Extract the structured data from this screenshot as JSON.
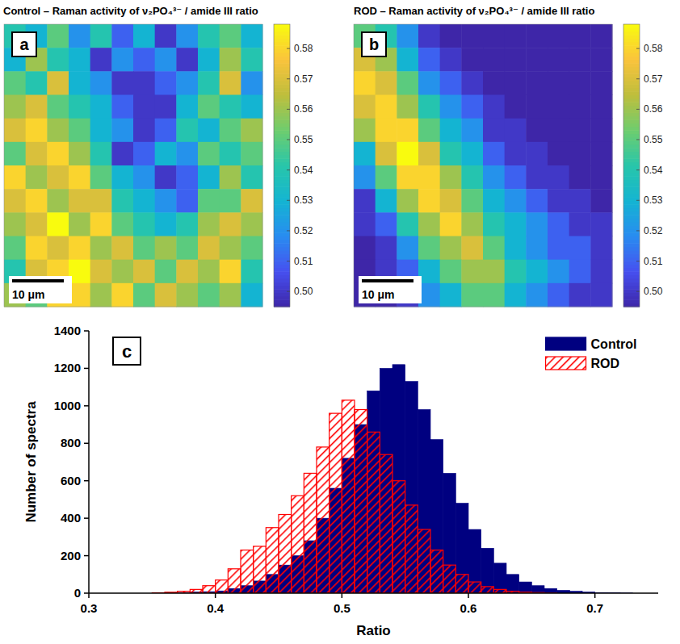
{
  "chart_data": [
    {
      "type": "heatmap",
      "panel_label": "a",
      "title": "Control – Raman activity of ν₂PO₄³⁻ / amide III ratio",
      "xlim": [
        0,
        50
      ],
      "ylim": [
        0,
        50
      ],
      "tick_labels": false,
      "scale_bar": {
        "label": "10 μm",
        "length": 10
      },
      "colorbar": {
        "range": [
          0.495,
          0.588
        ],
        "ticks": [
          {
            "value": 0.5,
            "label": "0.50"
          },
          0.51,
          0.52,
          0.53,
          0.54,
          0.55,
          0.56,
          0.57,
          0.58
        ]
      },
      "cells": [
        [
          0.54,
          0.53,
          0.55,
          0.52,
          0.54,
          0.51,
          0.53,
          0.5,
          0.52,
          0.54,
          0.55,
          0.53
        ],
        [
          0.53,
          0.56,
          0.54,
          0.53,
          0.5,
          0.52,
          0.51,
          0.52,
          0.5,
          0.53,
          0.56,
          0.54
        ],
        [
          0.55,
          0.54,
          0.57,
          0.53,
          0.52,
          0.5,
          0.5,
          0.51,
          0.52,
          0.54,
          0.57,
          0.52
        ],
        [
          0.56,
          0.57,
          0.55,
          0.54,
          0.53,
          0.51,
          0.5,
          0.5,
          0.53,
          0.55,
          0.54,
          0.53
        ],
        [
          0.57,
          0.58,
          0.56,
          0.55,
          0.53,
          0.52,
          0.5,
          0.51,
          0.54,
          0.53,
          0.55,
          0.56
        ],
        [
          0.55,
          0.57,
          0.58,
          0.56,
          0.54,
          0.5,
          0.51,
          0.53,
          0.52,
          0.55,
          0.54,
          0.55
        ],
        [
          0.58,
          0.56,
          0.57,
          0.58,
          0.55,
          0.53,
          0.52,
          0.5,
          0.51,
          0.53,
          0.56,
          0.54
        ],
        [
          0.57,
          0.58,
          0.56,
          0.57,
          0.57,
          0.54,
          0.53,
          0.52,
          0.51,
          0.55,
          0.55,
          0.57
        ],
        [
          0.56,
          0.57,
          0.59,
          0.56,
          0.58,
          0.55,
          0.54,
          0.53,
          0.54,
          0.56,
          0.57,
          0.56
        ],
        [
          0.55,
          0.58,
          0.57,
          0.58,
          0.56,
          0.57,
          0.55,
          0.56,
          0.55,
          0.57,
          0.56,
          0.55
        ],
        [
          0.54,
          0.57,
          0.58,
          0.59,
          0.57,
          0.56,
          0.57,
          0.55,
          0.57,
          0.56,
          0.58,
          0.54
        ],
        [
          0.56,
          0.55,
          0.58,
          0.58,
          0.56,
          0.58,
          0.55,
          0.57,
          0.56,
          0.55,
          0.56,
          0.53
        ]
      ]
    },
    {
      "type": "heatmap",
      "panel_label": "b",
      "title": "ROD – Raman activity of ν₂PO₄³⁻ / amide III ratio",
      "xlim": [
        0,
        50
      ],
      "ylim": [
        0,
        50
      ],
      "tick_labels": false,
      "scale_bar": {
        "label": "10 μm",
        "length": 10
      },
      "colorbar": {
        "range": [
          0.495,
          0.588
        ],
        "ticks": [
          {
            "value": 0.5,
            "label": "0.50"
          },
          0.51,
          0.52,
          0.53,
          0.54,
          0.55,
          0.56,
          0.57,
          0.58
        ]
      },
      "cells": [
        [
          0.55,
          0.54,
          0.52,
          0.5,
          0.495,
          0.495,
          0.495,
          0.495,
          0.495,
          0.495,
          0.495,
          0.495
        ],
        [
          0.57,
          0.56,
          0.53,
          0.51,
          0.5,
          0.495,
          0.495,
          0.495,
          0.495,
          0.495,
          0.495,
          0.495
        ],
        [
          0.58,
          0.57,
          0.55,
          0.52,
          0.51,
          0.5,
          0.495,
          0.495,
          0.495,
          0.495,
          0.495,
          0.495
        ],
        [
          0.57,
          0.58,
          0.56,
          0.54,
          0.52,
          0.51,
          0.5,
          0.495,
          0.495,
          0.495,
          0.495,
          0.495
        ],
        [
          0.56,
          0.58,
          0.58,
          0.55,
          0.53,
          0.52,
          0.5,
          0.5,
          0.495,
          0.495,
          0.495,
          0.495
        ],
        [
          0.53,
          0.57,
          0.59,
          0.57,
          0.54,
          0.53,
          0.51,
          0.5,
          0.5,
          0.495,
          0.495,
          0.495
        ],
        [
          0.52,
          0.55,
          0.58,
          0.58,
          0.56,
          0.54,
          0.52,
          0.51,
          0.5,
          0.5,
          0.495,
          0.495
        ],
        [
          0.5,
          0.53,
          0.56,
          0.58,
          0.57,
          0.55,
          0.53,
          0.52,
          0.51,
          0.5,
          0.5,
          0.495
        ],
        [
          0.5,
          0.51,
          0.54,
          0.56,
          0.58,
          0.56,
          0.54,
          0.53,
          0.52,
          0.51,
          0.5,
          0.5
        ],
        [
          0.495,
          0.5,
          0.52,
          0.55,
          0.56,
          0.57,
          0.55,
          0.53,
          0.52,
          0.51,
          0.51,
          0.5
        ],
        [
          0.495,
          0.5,
          0.51,
          0.53,
          0.55,
          0.56,
          0.56,
          0.54,
          0.53,
          0.52,
          0.51,
          0.5
        ],
        [
          0.495,
          0.495,
          0.5,
          0.52,
          0.53,
          0.55,
          0.55,
          0.53,
          0.52,
          0.51,
          0.5,
          0.5
        ]
      ]
    },
    {
      "type": "histogram",
      "panel_label": "c",
      "x_label": "Ratio",
      "y_label": "Number of spectra",
      "xlim": [
        0.3,
        0.75
      ],
      "ylim": [
        0,
        1400
      ],
      "xticks": [
        0.3,
        0.4,
        0.5,
        0.6,
        0.7
      ],
      "yticks": [
        0,
        200,
        400,
        600,
        800,
        1000,
        1200,
        1400
      ],
      "legend": "upper right",
      "bins": [
        0.35,
        0.36,
        0.37,
        0.38,
        0.39,
        0.4,
        0.41,
        0.42,
        0.43,
        0.44,
        0.45,
        0.46,
        0.47,
        0.48,
        0.49,
        0.5,
        0.51,
        0.52,
        0.53,
        0.54,
        0.55,
        0.56,
        0.57,
        0.58,
        0.59,
        0.6,
        0.61,
        0.62,
        0.63,
        0.64,
        0.65,
        0.66,
        0.67,
        0.68,
        0.69,
        0.7,
        0.71,
        0.72,
        0.73,
        0.74,
        0.75
      ],
      "series": [
        {
          "name": "Control",
          "color": "#000080",
          "values": [
            0,
            2,
            4,
            6,
            8,
            12,
            25,
            40,
            65,
            100,
            150,
            200,
            280,
            400,
            560,
            720,
            900,
            1080,
            1200,
            1220,
            1130,
            980,
            820,
            640,
            480,
            340,
            240,
            160,
            100,
            60,
            40,
            25,
            15,
            10,
            6,
            3,
            2,
            1,
            0,
            0
          ]
        },
        {
          "name": "ROD",
          "color": "#ff0000",
          "values": [
            2,
            5,
            10,
            20,
            40,
            70,
            130,
            230,
            250,
            350,
            420,
            520,
            640,
            780,
            960,
            1030,
            980,
            860,
            740,
            600,
            470,
            340,
            230,
            150,
            100,
            60,
            35,
            20,
            10,
            5,
            3,
            1,
            0,
            0,
            0,
            0,
            0,
            0,
            0,
            0
          ]
        }
      ]
    }
  ]
}
